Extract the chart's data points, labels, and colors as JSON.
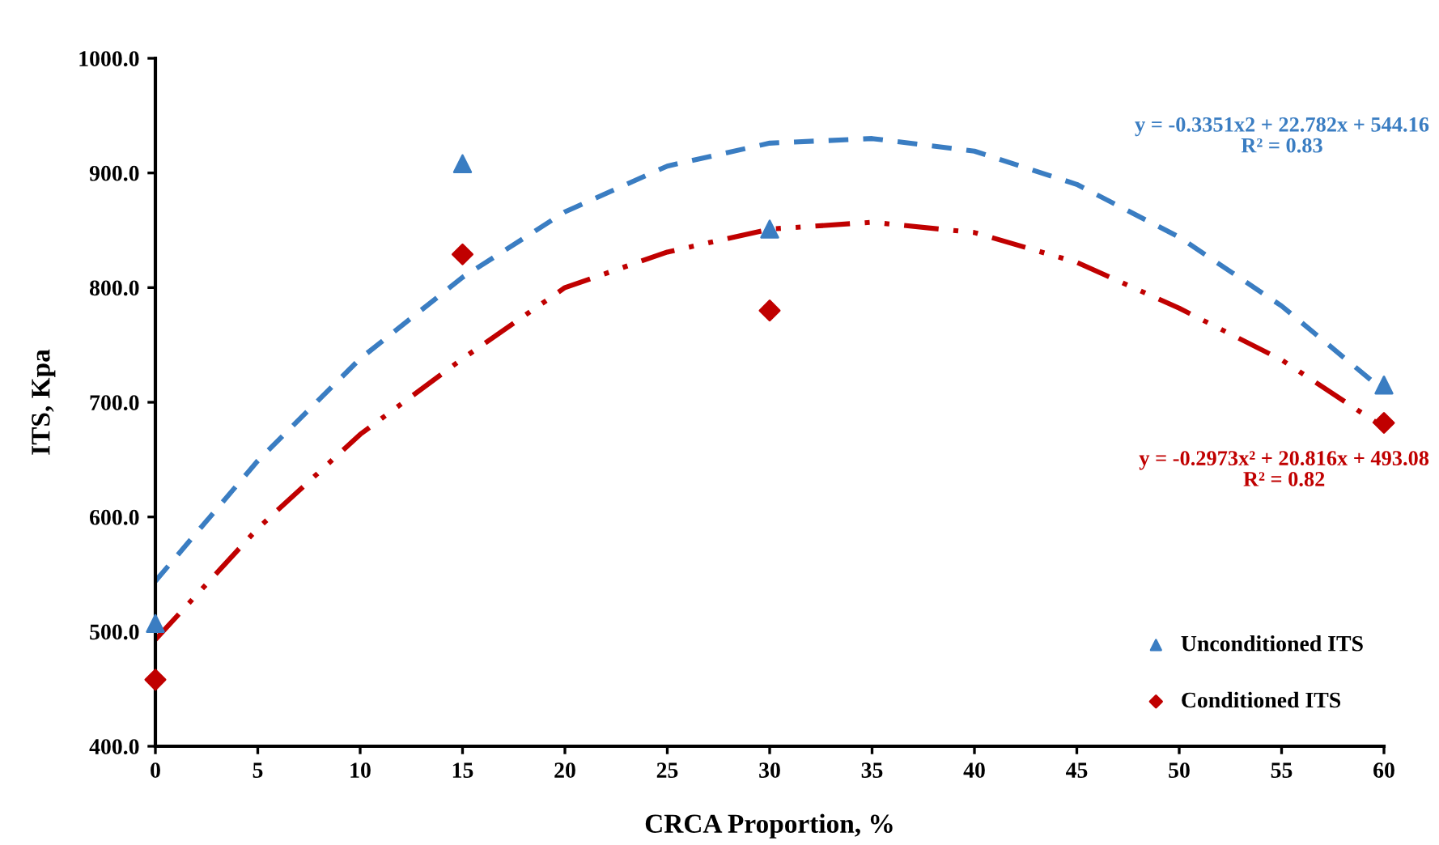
{
  "chart_data": {
    "type": "scatter",
    "xlabel": "CRCA Proportion, %",
    "ylabel": "ITS, Kpa",
    "xlim": [
      0,
      60
    ],
    "xticks": [
      0,
      5,
      10,
      15,
      20,
      25,
      30,
      35,
      40,
      45,
      50,
      55,
      60
    ],
    "ylim": [
      400,
      1000
    ],
    "yticks": [
      {
        "value": 400,
        "label": "400.0"
      },
      {
        "value": 500,
        "label": "500.0"
      },
      {
        "value": 600,
        "label": "600.0"
      },
      {
        "value": 700,
        "label": "700.0"
      },
      {
        "value": 800,
        "label": "800.0"
      },
      {
        "value": 900,
        "label": "900.0"
      },
      {
        "value": 1000,
        "label": "1000.0"
      }
    ],
    "grid": false,
    "legend": "bottom right",
    "series": [
      {
        "name": "Unconditioned ITS",
        "marker": "triangle",
        "color": "#3a7dc2",
        "x": [
          0,
          15,
          30,
          60
        ],
        "values": [
          507,
          908,
          851,
          715
        ]
      },
      {
        "name": "Conditioned ITS",
        "marker": "diamond",
        "color": "#c00000",
        "x": [
          0,
          15,
          30,
          60
        ],
        "values": [
          458,
          829,
          780,
          682
        ]
      },
      {
        "type": "line",
        "line_style": "dashed",
        "color": "#3a7dc2",
        "x": [
          0,
          5,
          10,
          15,
          20,
          25,
          30,
          35,
          40,
          45,
          50,
          55,
          60
        ],
        "values": [
          544,
          649,
          738,
          809,
          866,
          906,
          926,
          930,
          919,
          890,
          844,
          784,
          710
        ]
      },
      {
        "type": "line",
        "line_style": "dashdotdot",
        "color": "#c00000",
        "x": [
          0,
          5,
          10,
          15,
          20,
          25,
          30,
          35,
          40,
          45,
          50,
          55,
          60
        ],
        "values": [
          493,
          590,
          672,
          738,
          800,
          831,
          851,
          857,
          848,
          822,
          782,
          737,
          678
        ]
      }
    ],
    "annotations": [
      "y = -0.3351x2 + 22.782x + 544.16\nR² = 0.83",
      "y = -0.2973x² + 20.816x + 493.08\nR² = 0.82"
    ]
  }
}
